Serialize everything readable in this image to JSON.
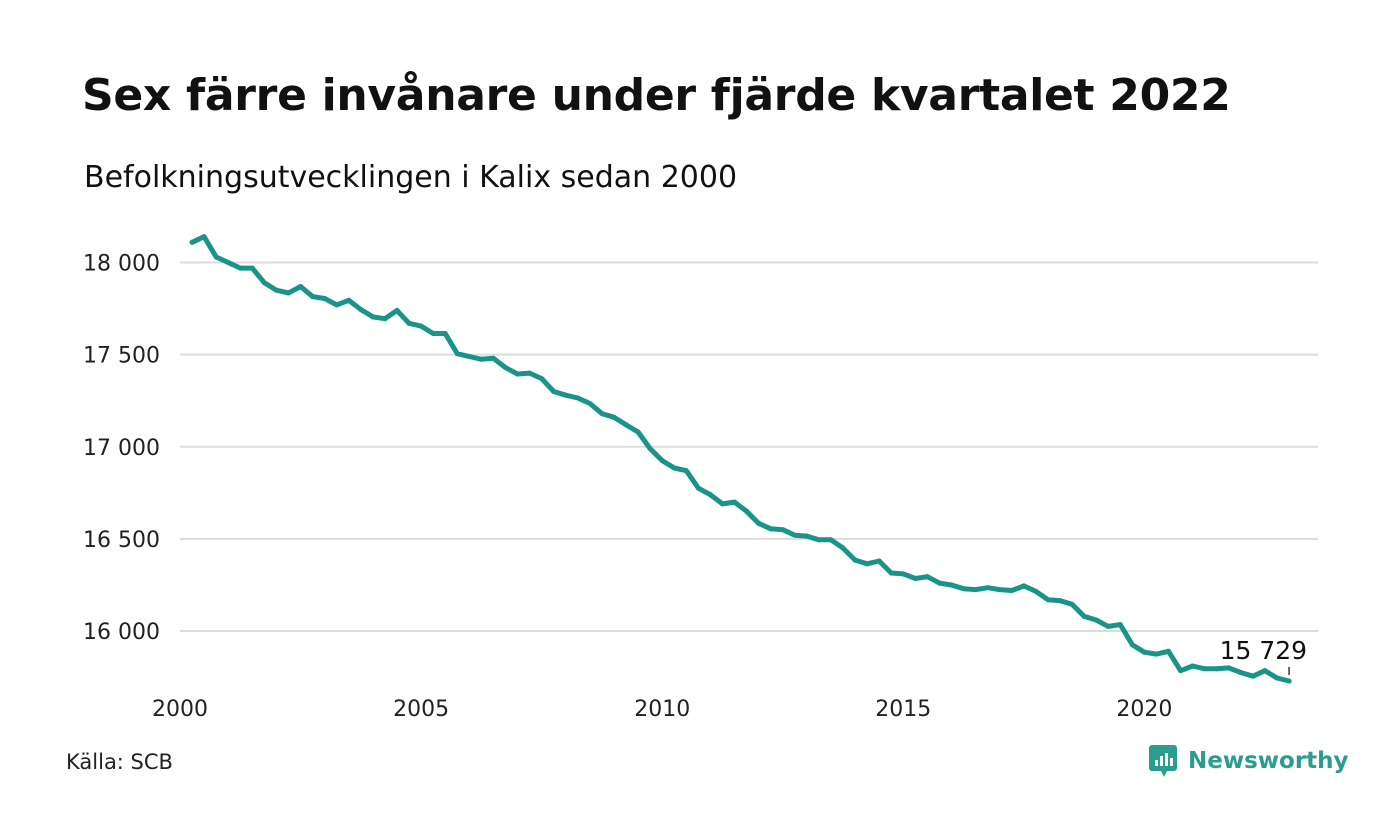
{
  "title": "Sex färre invånare under fjärde kvartalet 2022",
  "subtitle": "Befolkningsutvecklingen i Kalix sedan 2000",
  "source": "Källa: SCB",
  "brand": {
    "name": "Newsworthy",
    "icon": "newsworthy-logo-icon",
    "color": "#2a9d8f"
  },
  "chart_data": {
    "type": "line",
    "title": "Sex färre invånare under fjärde kvartalet 2022",
    "subtitle": "Befolkningsutvecklingen i Kalix sedan 2000",
    "xlabel": "",
    "ylabel": "",
    "xlim": [
      2000,
      2023.6
    ],
    "ylim": [
      15680,
      18220
    ],
    "yticks": [
      16000,
      16500,
      17000,
      17500,
      18000
    ],
    "ytick_labels": [
      "16 000",
      "16 500",
      "17 000",
      "17 500",
      "18 000"
    ],
    "xticks": [
      2000,
      2005,
      2010,
      2015,
      2020
    ],
    "xtick_labels": [
      "2000",
      "2005",
      "2010",
      "2015",
      "2020"
    ],
    "grid": "horizontal",
    "line_color": "#1a9488",
    "end_label": "15 729",
    "series": [
      {
        "x": [
          2000.25,
          2000.5,
          2000.75,
          2001.0,
          2001.25,
          2001.5,
          2001.75,
          2002.0,
          2002.25,
          2002.5,
          2002.75,
          2003.0,
          2003.25,
          2003.5,
          2003.75,
          2004.0,
          2004.25,
          2004.5,
          2004.75,
          2005.0,
          2005.25,
          2005.5,
          2005.75,
          2006.0,
          2006.25,
          2006.5,
          2006.75,
          2007.0,
          2007.25,
          2007.5,
          2007.75,
          2008.0,
          2008.25,
          2008.5,
          2008.75,
          2009.0,
          2009.25,
          2009.5,
          2009.75,
          2010.0,
          2010.25,
          2010.5,
          2010.75,
          2011.0,
          2011.25,
          2011.5,
          2011.75,
          2012.0,
          2012.25,
          2012.5,
          2012.75,
          2013.0,
          2013.25,
          2013.5,
          2013.75,
          2014.0,
          2014.25,
          2014.5,
          2014.75,
          2015.0,
          2015.25,
          2015.5,
          2015.75,
          2016.0,
          2016.25,
          2016.5,
          2016.75,
          2017.0,
          2017.25,
          2017.5,
          2017.75,
          2018.0,
          2018.25,
          2018.5,
          2018.75,
          2019.0,
          2019.25,
          2019.5,
          2019.75,
          2020.0,
          2020.25,
          2020.5,
          2020.75,
          2021.0,
          2021.25,
          2021.5,
          2021.75,
          2022.0,
          2022.25,
          2022.5,
          2022.75,
          2023.0
        ],
        "values": [
          18110,
          18140,
          18030,
          18000,
          17970,
          17970,
          17890,
          17850,
          17835,
          17870,
          17815,
          17805,
          17770,
          17795,
          17745,
          17705,
          17695,
          17740,
          17670,
          17655,
          17615,
          17615,
          17505,
          17490,
          17475,
          17480,
          17430,
          17395,
          17400,
          17370,
          17300,
          17280,
          17265,
          17235,
          17180,
          17160,
          17120,
          17080,
          16990,
          16925,
          16885,
          16870,
          16775,
          16740,
          16690,
          16700,
          16650,
          16585,
          16555,
          16550,
          16520,
          16515,
          16495,
          16495,
          16450,
          16385,
          16365,
          16380,
          16315,
          16310,
          16285,
          16295,
          16260,
          16250,
          16230,
          16225,
          16235,
          16225,
          16220,
          16245,
          16215,
          16170,
          16165,
          16145,
          16080,
          16060,
          16025,
          16035,
          15925,
          15885,
          15875,
          15890,
          15785,
          15810,
          15795,
          15795,
          15800,
          15775,
          15755,
          15785,
          15745,
          15729
        ]
      }
    ]
  }
}
